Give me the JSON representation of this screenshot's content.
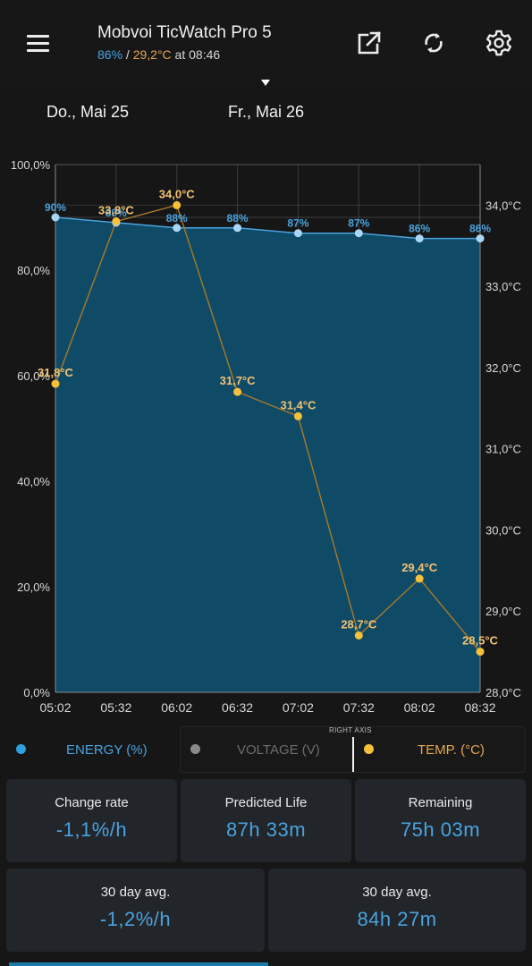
{
  "header": {
    "title": "Mobvoi TicWatch Pro 5",
    "subtitle_battery": "86%",
    "subtitle_sep": " / ",
    "subtitle_temp": "29,2°C",
    "subtitle_time": " at 08:46"
  },
  "icons": {
    "menu": "menu-icon",
    "open": "open-external-icon",
    "refresh": "refresh-icon",
    "settings": "gear-icon"
  },
  "dates": {
    "left": "Do., Mai 25",
    "right": "Fr., Mai 26"
  },
  "chart_data": {
    "type": "area",
    "categories": [
      "05:02",
      "05:32",
      "06:02",
      "06:32",
      "07:02",
      "07:32",
      "08:02",
      "08:32"
    ],
    "y_left": {
      "min": 0,
      "max": 100,
      "ticks": [
        "0,0%",
        "20,0%",
        "40,0%",
        "60,0%",
        "80,0%",
        "100,0%"
      ]
    },
    "y_right": {
      "min": 28.0,
      "max": 34.5,
      "ticks": [
        "28,0°C",
        "29,0°C",
        "30,0°C",
        "31,0°C",
        "32,0°C",
        "33,0°C",
        "34,0°C"
      ]
    },
    "grid": true,
    "series": [
      {
        "name": "ENERGY (%)",
        "axis": "left",
        "color": "#4aa3df",
        "fill": "#0f4a66",
        "values": [
          90,
          89,
          88,
          88,
          87,
          87,
          86,
          86
        ],
        "labels": [
          "90%",
          "89%",
          "88%",
          "88%",
          "87%",
          "87%",
          "86%",
          "86%"
        ]
      },
      {
        "name": "TEMP. (°C)",
        "axis": "right",
        "color": "#f5c13a",
        "line_color": "#a97a2a",
        "label_color": "#f3c274",
        "values": [
          31.8,
          33.8,
          34.0,
          31.7,
          31.4,
          28.7,
          29.4,
          28.5
        ],
        "labels": [
          "31,8°C",
          "33,8°C",
          "34,0°C",
          "31,7°C",
          "31,4°C",
          "28,7°C",
          "29,4°C",
          "28,5°C"
        ]
      }
    ]
  },
  "legend": {
    "energy": {
      "label": "ENERGY (%)",
      "color": "#2f9fe0",
      "text_color": "#4aa3df"
    },
    "voltage": {
      "label": "VOLTAGE (V)",
      "color": "#8a8a8a",
      "text_color": "#6d6d6d"
    },
    "temp": {
      "label": "TEMP. (°C)",
      "color": "#f5c13a",
      "text_color": "#e6a653"
    },
    "right_axis": "RIGHT AXIS"
  },
  "stats": {
    "change_rate": {
      "label": "Change rate",
      "value": "-1,1%/h"
    },
    "predicted_life": {
      "label": "Predicted Life",
      "value": "87h 33m"
    },
    "remaining": {
      "label": "Remaining",
      "value": "75h 03m"
    },
    "avg_rate": {
      "label": "30 day avg.",
      "value": "-1,2%/h"
    },
    "avg_life": {
      "label": "30 day avg.",
      "value": "84h 27m"
    }
  }
}
